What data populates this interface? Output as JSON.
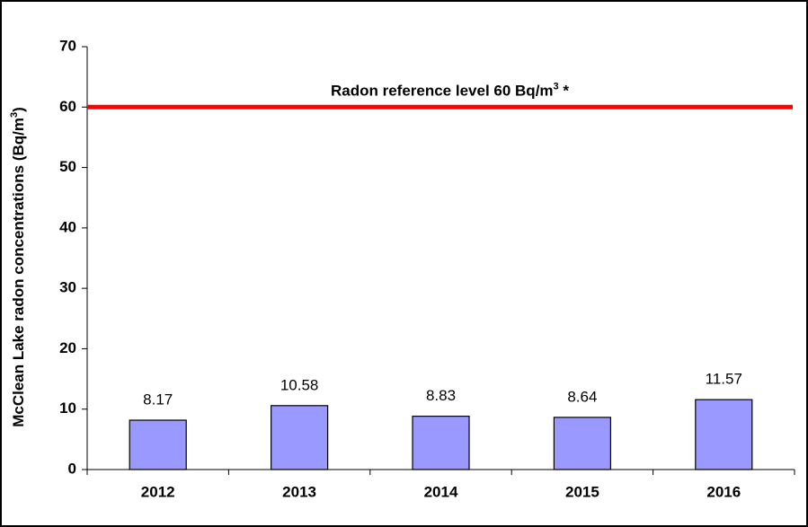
{
  "chart_data": {
    "type": "bar",
    "ylabel": [
      "McClean Lake radon concentrations (Bq/m",
      "3",
      ")"
    ],
    "categories": [
      "2012",
      "2013",
      "2014",
      "2015",
      "2016"
    ],
    "values": [
      8.17,
      10.58,
      8.83,
      8.64,
      11.57
    ],
    "color": "#9999ff",
    "ylim": [
      0,
      70
    ],
    "yticks": [
      0,
      10,
      20,
      30,
      40,
      50,
      60,
      70
    ],
    "reference_line": {
      "value": 60,
      "color": "#ff0000",
      "label": [
        "Radon reference level 60 Bq/m",
        "3",
        " *"
      ]
    }
  }
}
